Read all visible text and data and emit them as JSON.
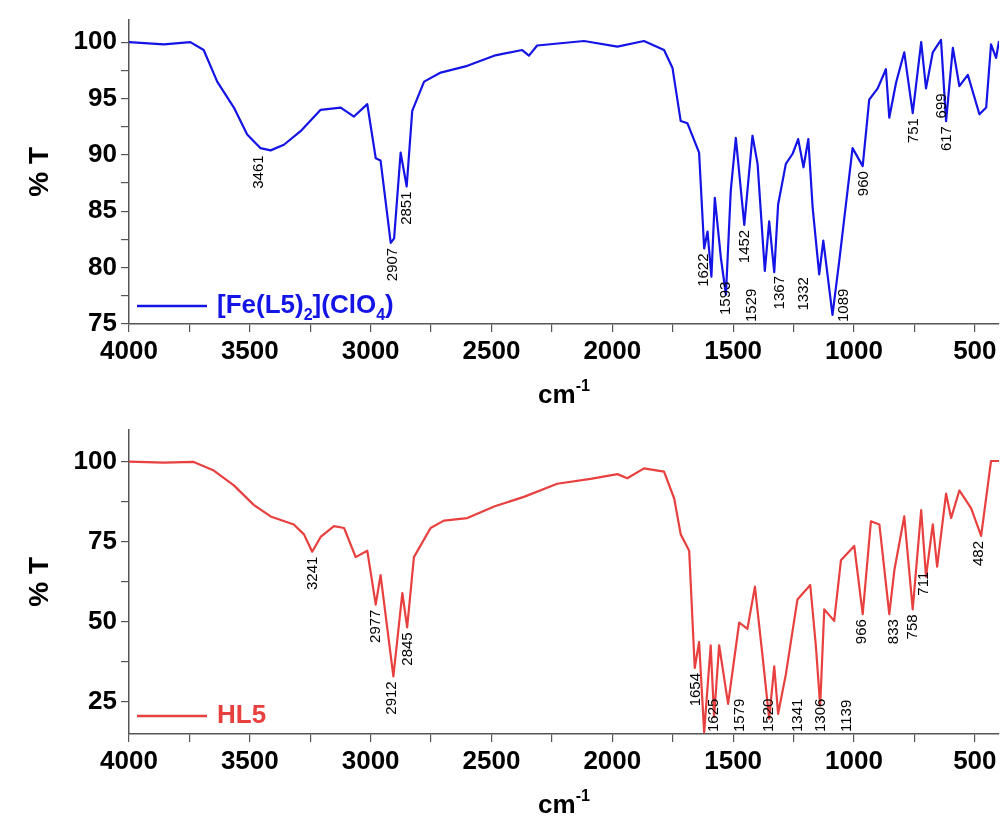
{
  "chart_data": [
    {
      "type": "line",
      "xlabel": "cm$^{-1}$",
      "ylabel": "% T",
      "legend": "bottom left",
      "grid": false,
      "xlim": [
        4000,
        400
      ],
      "ylim": [
        75,
        102
      ],
      "xticks": [
        4000,
        {
          "value": 3750,
          "label": null
        },
        3500,
        {
          "value": 3250,
          "label": null
        },
        3000,
        {
          "value": 2750,
          "label": null
        },
        2500,
        {
          "value": 2250,
          "label": null
        },
        2000,
        {
          "value": 1750,
          "label": null
        },
        1500,
        {
          "value": 1250,
          "label": null
        },
        1000,
        {
          "value": 750,
          "label": null
        },
        500
      ],
      "yticks": [
        75,
        {
          "value": 77.5,
          "label": null
        },
        80,
        {
          "value": 82.5,
          "label": null
        },
        85,
        {
          "value": 87.5,
          "label": null
        },
        90,
        {
          "value": 92.5,
          "label": null
        },
        95,
        {
          "value": 97.5,
          "label": null
        },
        100
      ],
      "series": [
        {
          "name": "[Fe(L5)$_{2}$](ClO$_{4}$)",
          "color": "#1414e6",
          "x": [
            4000,
            3856,
            3746,
            3691,
            3635,
            3566,
            3511,
            3456,
            3414,
            3359,
            3290,
            3207,
            3124,
            3069,
            3014,
            2979,
            2959,
            2917,
            2903,
            2876,
            2851,
            2828,
            2779,
            2710,
            2600,
            2489,
            2373,
            2345,
            2311,
            2117,
            1979,
            1869,
            1786,
            1751,
            1717,
            1689,
            1641,
            1620,
            1606,
            1590,
            1576,
            1551,
            1530,
            1510,
            1489,
            1454,
            1420,
            1399,
            1369,
            1351,
            1330,
            1314,
            1282,
            1254,
            1231,
            1209,
            1189,
            1171,
            1144,
            1127,
            1089,
            1061,
            1006,
            964,
            937,
            902,
            868,
            854,
            826,
            792,
            757,
            722,
            702,
            674,
            640,
            619,
            591,
            564,
            529,
            481,
            453,
            433,
            412,
            400
          ],
          "values": [
            100,
            99.8,
            100,
            99.3,
            96.5,
            94.2,
            91.8,
            90.6,
            90.4,
            90.9,
            92.1,
            94,
            94.2,
            93.4,
            94.5,
            89.7,
            89.5,
            82.2,
            82.6,
            90.2,
            87.2,
            93.9,
            96.5,
            97.3,
            97.9,
            98.8,
            99.3,
            98.8,
            99.7,
            100.1,
            99.6,
            100.1,
            99.3,
            97.7,
            93,
            92.8,
            90.2,
            81.7,
            83.2,
            79.2,
            86.2,
            80.9,
            77.6,
            86.8,
            91.5,
            83.8,
            91.7,
            89.2,
            79.7,
            84.1,
            79.6,
            85.6,
            89.2,
            90.1,
            91.4,
            88.9,
            91.4,
            85.3,
            79.4,
            82.4,
            75.8,
            80.6,
            90.6,
            89,
            94.9,
            95.9,
            97.6,
            93.3,
            96.4,
            99.1,
            93.7,
            100,
            95.9,
            99.1,
            100.2,
            93,
            99.5,
            96.1,
            97.1,
            93.6,
            94.2,
            99.8,
            98.6,
            100.1
          ]
        }
      ],
      "annotations": [
        {
          "text": "3461",
          "x": 3461,
          "y": 90.4
        },
        {
          "text": "2907",
          "x": 2907,
          "y": 82.2
        },
        {
          "text": "2851",
          "x": 2851,
          "y": 87.2
        },
        {
          "text": "1622",
          "x": 1622,
          "y": 81.7
        },
        {
          "text": "1593",
          "x": 1593,
          "y": 79.2
        },
        {
          "text": "1529",
          "x": 1529,
          "y": 77.6
        },
        {
          "text": "1452",
          "x": 1452,
          "y": 83.8
        },
        {
          "text": "1367",
          "x": 1367,
          "y": 79.7
        },
        {
          "text": "1332",
          "x": 1332,
          "y": 79.6
        },
        {
          "text": "1089",
          "x": 1089,
          "y": 75.8
        },
        {
          "text": "960",
          "x": 960,
          "y": 89
        },
        {
          "text": "751",
          "x": 751,
          "y": 93.7
        },
        {
          "text": "699",
          "x": 699,
          "y": 95.9
        },
        {
          "text": "617",
          "x": 617,
          "y": 93
        }
      ]
    },
    {
      "type": "line",
      "xlabel": "cm$^{-1}$",
      "ylabel": "% T",
      "legend": "bottom left",
      "grid": false,
      "xlim": [
        4000,
        400
      ],
      "ylim": [
        15,
        110
      ],
      "xticks": [
        4000,
        {
          "value": 3750,
          "label": null
        },
        3500,
        {
          "value": 3250,
          "label": null
        },
        3000,
        {
          "value": 2750,
          "label": null
        },
        2500,
        {
          "value": 2250,
          "label": null
        },
        2000,
        {
          "value": 1750,
          "label": null
        },
        1500,
        {
          "value": 1250,
          "label": null
        },
        1000,
        {
          "value": 750,
          "label": null
        },
        500
      ],
      "yticks": [
        25,
        {
          "value": 37.5,
          "label": null
        },
        50,
        {
          "value": 62.5,
          "label": null
        },
        75,
        {
          "value": 87.5,
          "label": null
        },
        100
      ],
      "series": [
        {
          "name": "HL5",
          "color": "#e8403f",
          "x": [
            4000,
            3856,
            3732,
            3649,
            3566,
            3484,
            3414,
            3318,
            3276,
            3242,
            3207,
            3152,
            3110,
            3062,
            3014,
            2979,
            2959,
            2906,
            2869,
            2849,
            2821,
            2752,
            2697,
            2600,
            2489,
            2366,
            2228,
            2090,
            1979,
            1938,
            1869,
            1786,
            1744,
            1717,
            1682,
            1659,
            1641,
            1620,
            1593,
            1579,
            1558,
            1521,
            1475,
            1441,
            1410,
            1379,
            1351,
            1330,
            1314,
            1282,
            1234,
            1181,
            1158,
            1140,
            1123,
            1082,
            1054,
            999,
            964,
            930,
            895,
            854,
            833,
            792,
            757,
            722,
            702,
            674,
            656,
            619,
            598,
            564,
            515,
            474,
            433,
            400
          ],
          "values": [
            100,
            99.7,
            99.9,
            97.2,
            92.6,
            86.5,
            82.9,
            80.4,
            77.3,
            71.9,
            76.5,
            79.9,
            79.3,
            70.2,
            72.2,
            55.4,
            64.6,
            33,
            59,
            48.3,
            70.2,
            79.3,
            81.6,
            82.4,
            86,
            89,
            93.1,
            94.6,
            96.1,
            94.8,
            97.9,
            96.9,
            88.5,
            77.3,
            72.2,
            35.6,
            43.7,
            15.5,
            42.7,
            20.3,
            42.7,
            24.4,
            49.8,
            47.8,
            61,
            39.7,
            19.8,
            36.1,
            21.3,
            33.6,
            57,
            61.5,
            42.7,
            23.9,
            53.9,
            50.3,
            69.2,
            73.7,
            52.4,
            81.4,
            80.4,
            52.4,
            66.1,
            82.9,
            53.9,
            84.9,
            64.1,
            80.4,
            67.2,
            90,
            82.4,
            91,
            85.4,
            76.8,
            100.2,
            100.2
          ]
        }
      ],
      "annotations": [
        {
          "text": "3241",
          "x": 3241,
          "y": 71.9
        },
        {
          "text": "2977",
          "x": 2977,
          "y": 55.4
        },
        {
          "text": "2912",
          "x": 2912,
          "y": 33
        },
        {
          "text": "2845",
          "x": 2845,
          "y": 48.3
        },
        {
          "text": "1654",
          "x": 1654,
          "y": 35.6
        },
        {
          "text": "1625",
          "x": 1625,
          "y": 15.5
        },
        {
          "text": "1579",
          "x": 1579,
          "y": 20.3
        },
        {
          "text": "1520",
          "x": 1520,
          "y": 24.4
        },
        {
          "text": "1341",
          "x": 1341,
          "y": 19.8
        },
        {
          "text": "1306",
          "x": 1306,
          "y": 21.3
        },
        {
          "text": "1139",
          "x": 1139,
          "y": 23.9
        },
        {
          "text": "966",
          "x": 966,
          "y": 52.4
        },
        {
          "text": "833",
          "x": 833,
          "y": 52.4
        },
        {
          "text": "758",
          "x": 758,
          "y": 53.9
        },
        {
          "text": "711",
          "x": 711,
          "y": 67.2
        },
        {
          "text": "482",
          "x": 482,
          "y": 76.8
        }
      ]
    }
  ]
}
